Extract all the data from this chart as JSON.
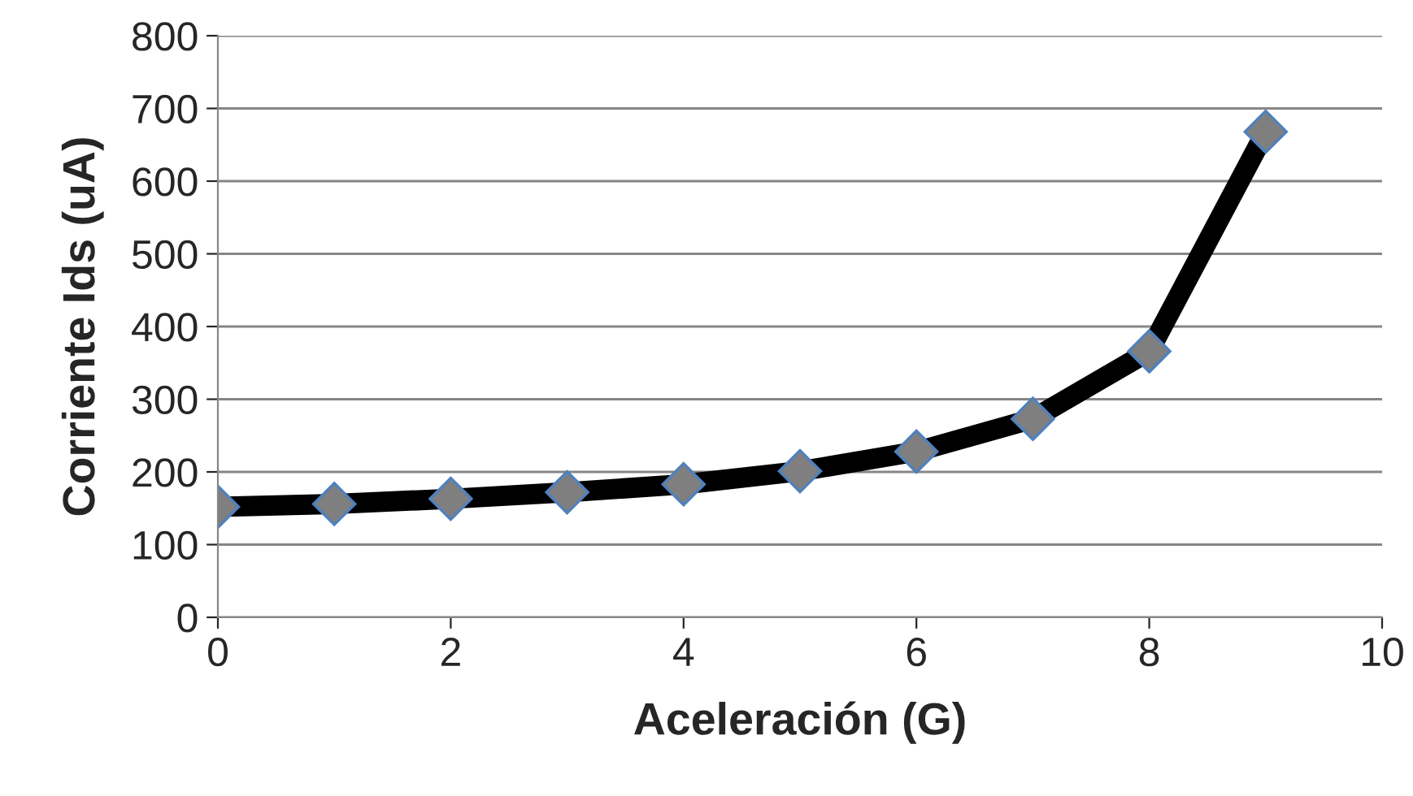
{
  "chart_data": {
    "type": "line",
    "xlabel": "Aceleración (G)",
    "ylabel": "Corriente Ids (uA)",
    "x": [
      0,
      1,
      2,
      3,
      4,
      5,
      6,
      7,
      8,
      9
    ],
    "series": [
      {
        "color": "#000000",
        "values": [
          152,
          156,
          163,
          172,
          183,
          201,
          228,
          273,
          366,
          668
        ]
      }
    ],
    "xlim": [
      0,
      10
    ],
    "xticks": [
      0,
      2,
      4,
      6,
      8,
      10
    ],
    "ylim": [
      0,
      800
    ],
    "yticks": [
      0,
      100,
      200,
      300,
      400,
      500,
      600,
      700,
      800
    ],
    "grid": "y",
    "marker": "diamond",
    "line_style": "solid"
  }
}
